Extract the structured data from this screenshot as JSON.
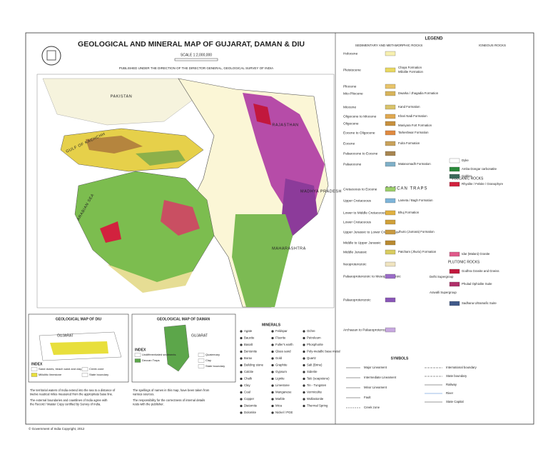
{
  "title": "GEOLOGICAL AND MINERAL MAP OF GUJARAT, DAMAN & DIU",
  "scale": "SCALE 1:2,000,000",
  "published": "PUBLISHED UNDER THE DIRECTION OF THE DIRECTOR GENERAL, GEOLOGICAL SURVEY OF INDIA",
  "map_labels": [
    "PAKISTAN",
    "RAJASTHAN",
    "MADHYA PRADESH",
    "MAHARASHTRA",
    "GULF OF KACHCHH",
    "ARABIAN SEA"
  ],
  "legend": {
    "title": "LEGEND",
    "left_heading": "SEDIMENTARY AND METAMORPHIC ROCKS",
    "right_heading": "IGNEOUS ROCKS",
    "deccan": "DECCAN TRAPS",
    "volcanic": "VOLCANIC ROCKS",
    "plutonic": "PLUTONIC ROCKS",
    "ages": [
      "Holocene",
      "Pleistocene",
      "Pliocene",
      "Mio-Pliocene",
      "Miocene",
      "Oligocene to Miocene",
      "Oligocene",
      "Eocene to Oligocene",
      "Eocene",
      "Palaeocene to Eocene",
      "Palaeocene",
      "Cretaceous to Eocene",
      "Upper Cretaceous",
      "Lower to Middle Cretaceous",
      "Lower Cretaceous",
      "Upper Jurassic to Lower Cretaceous",
      "Middle to Upper Jurassic",
      "Middle Jurassic",
      "Neoproterozoic",
      "Palaeoproterozoic to Mesoproterozoic",
      "Palaeoproterozoic",
      "Archaean to Palaeoproterozoic"
    ],
    "units": [
      "Chaya Formation",
      "Miliolite Formation",
      "Dwarka / Jhagadia Formation",
      "Kand Formation",
      "Khari Nadi Formation",
      "Maniyara Fort Formation",
      "Tarkeshwar Formation",
      "Fulra Formation",
      "Matanomadh Formation",
      "Lameta / Bagh Formation",
      "Bhuj Formation",
      "Jhurio (Jumara) Formation",
      "Patcham (Jhurio) Formation",
      "Delhi Supergroup",
      "Aravalli Supergroup"
    ],
    "igneous": [
      "Amba Dongar carbonatite",
      "Gabbro",
      "Rhyolite / Felsite / Granophyre",
      "Dyke",
      "Idar (Malani) Granite",
      "Godhra Granite and Gneiss",
      "Phulad Ophiolite Suite",
      "Sadhana Ultramafic Suite"
    ]
  },
  "inset_diu": {
    "title": "GEOLOGICAL MAP OF DIU",
    "label": "GUJARAT",
    "index": "INDEX",
    "items": [
      "Sand dunes, beach sand and clay",
      "Miliolitic limestone",
      "Creek zone",
      "State boundary"
    ]
  },
  "inset_daman": {
    "title": "GEOLOGICAL MAP OF DAMAN",
    "label": "GUJARAT",
    "index": "INDEX",
    "items": [
      "Undifferentiated sediments",
      "Deccan Traps",
      "Quaternary",
      "Clay",
      "State boundary"
    ]
  },
  "minerals": {
    "title": "MINERALS",
    "items": [
      "Agate",
      "Bauxite",
      "Basalt",
      "Bentonite",
      "Borax",
      "Building stone",
      "Calcite",
      "Chalk",
      "Clay",
      "Coal",
      "Copper",
      "Diatomite",
      "Dolomite",
      "Feldspar",
      "Fluorite",
      "Fuller's earth",
      "Glass sand",
      "Gold",
      "Graphite",
      "Gypsum",
      "Lignite",
      "Limestone",
      "Manganese",
      "Marble",
      "Mica",
      "Nickel / PGE",
      "Ochre",
      "Petroleum",
      "Phosphorite",
      "Poly-metallic base metal",
      "Quartz",
      "Salt (Brine)",
      "Siderite",
      "Talc (soapstone)",
      "Tin - Tungsten",
      "Vermiculite",
      "Wollastonite",
      "Thermal Spring"
    ]
  },
  "symbols": {
    "title": "SYMBOLS",
    "left": [
      "Major Lineament",
      "Intermediate Lineament",
      "Minor Lineament",
      "Fault",
      "Creek zone"
    ],
    "right": [
      "International boundary",
      "State boundary",
      "Railway",
      "River",
      "State Capital"
    ]
  },
  "notes_left": [
    [
      "The territorial waters of India extend into the sea to a distance of",
      "twelve nautical miles measured from the appropriate base line."
    ],
    [
      "The external boundaries and coastlines of India agree with",
      "the Record / Master Copy certified by Survey of India."
    ]
  ],
  "notes_mid": [
    [
      "The spellings of names in this map, have been taken from",
      "various sources."
    ],
    [
      "The responsibility for the correctness of internal details",
      "rests with the publisher."
    ]
  ],
  "copyright": "© Government of India Copyright, 2012"
}
